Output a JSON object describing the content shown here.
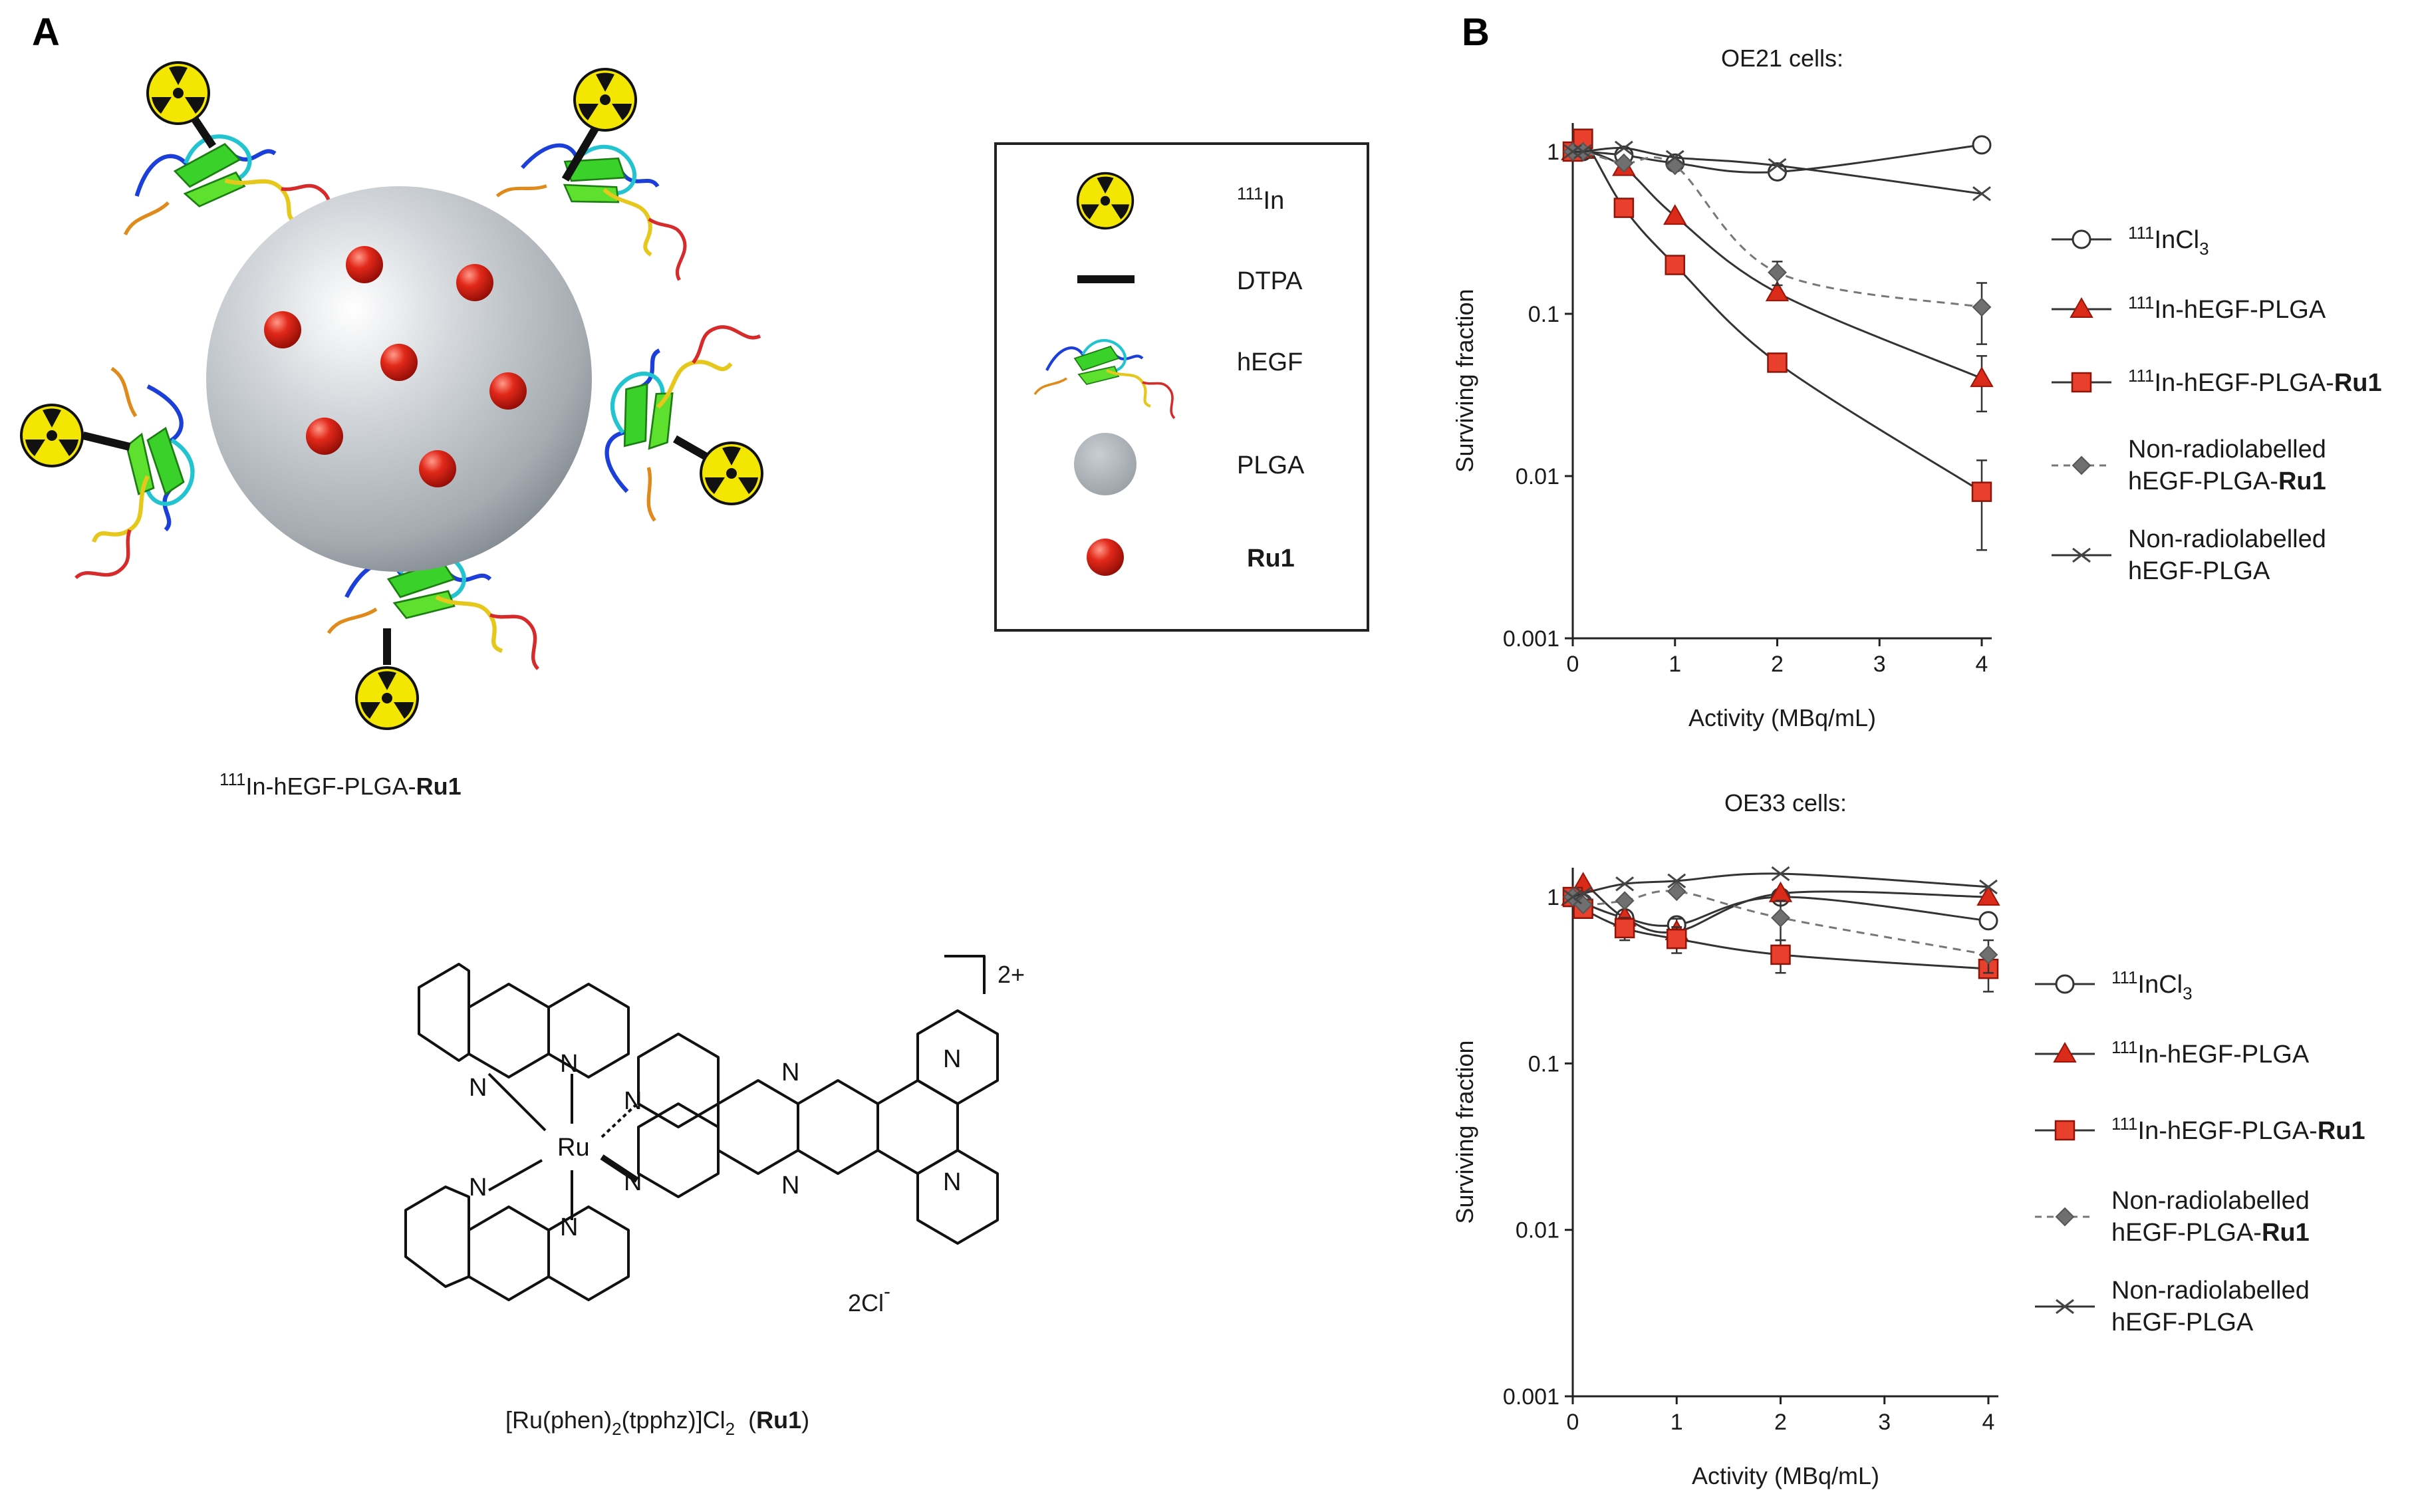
{
  "panel_a": {
    "label": "A",
    "nanoparticle_caption": {
      "pre": "111",
      "main": "In-hEGF-PLGA-",
      "bold": "Ru1"
    },
    "legend": {
      "items": [
        {
          "icon": "radioactive-icon",
          "sup": "111",
          "label": "In"
        },
        {
          "icon": "dtpa-bar-icon",
          "sup": "",
          "label": "DTPA"
        },
        {
          "icon": "hegf-ribbon-icon",
          "sup": "",
          "label": "hEGF"
        },
        {
          "icon": "plga-sphere-icon",
          "sup": "",
          "label": "PLGA"
        },
        {
          "icon": "ru1-sphere-icon",
          "sup": "",
          "label": "Ru1"
        }
      ]
    },
    "structure": {
      "charge": "2+",
      "counterion": {
        "main": "2Cl",
        "sup": "-"
      },
      "ru_label": "Ru",
      "n_label": "N",
      "caption": {
        "pre": "[Ru(phen)",
        "sub1": "2",
        "mid": "(tpphz)]Cl",
        "sub2": "2",
        "post": "  (",
        "bold": "Ru1",
        "end": ")"
      }
    },
    "colors": {
      "radioactive": "#f2e600",
      "sphere": "#b9bec3",
      "ru1": "#d81e12"
    }
  },
  "panel_b": {
    "label": "B",
    "legend_entries": [
      {
        "sup": "111",
        "main": "InCl",
        "sub": "3",
        "bold": ""
      },
      {
        "sup": "111",
        "main": "In-hEGF-PLGA",
        "sub": "",
        "bold": ""
      },
      {
        "sup": "111",
        "main": "In-hEGF-PLGA-",
        "sub": "",
        "bold": "Ru1"
      },
      {
        "sup": "",
        "main": "Non-radiolabelled",
        "line2": "hEGF-PLGA-",
        "bold": "Ru1"
      },
      {
        "sup": "",
        "main": "Non-radiolabelled",
        "line2": "hEGF-PLGA",
        "bold": ""
      }
    ]
  },
  "chart_data": [
    {
      "type": "line",
      "title": "OE21 cells:",
      "xlabel": "Activity (MBq/mL)",
      "ylabel": "Surviving fraction",
      "xlim": [
        0,
        4
      ],
      "ylim": [
        0.001,
        1.5
      ],
      "yscale": "log",
      "xticks": [
        "0",
        "1",
        "2",
        "3",
        "4"
      ],
      "yticks": [
        "0.001",
        "0.01",
        "0.1",
        "1"
      ],
      "series": [
        {
          "key": "incl3",
          "marker": "open-circle",
          "dash": false,
          "x": [
            0,
            0.1,
            0.5,
            1,
            2,
            4
          ],
          "y": [
            1.0,
            1.0,
            0.95,
            0.85,
            0.75,
            1.1
          ],
          "err": [
            0,
            0,
            0,
            0,
            0,
            0
          ]
        },
        {
          "key": "hegf_plga",
          "marker": "triangle",
          "dash": false,
          "x": [
            0,
            0.1,
            0.5,
            1,
            2,
            4
          ],
          "y": [
            1.0,
            1.02,
            0.8,
            0.4,
            0.135,
            0.04
          ],
          "err": [
            0,
            0,
            0,
            0,
            0,
            0.015
          ]
        },
        {
          "key": "hegf_plga_ru1",
          "marker": "square",
          "dash": false,
          "x": [
            0,
            0.1,
            0.5,
            1,
            2,
            4
          ],
          "y": [
            1.0,
            1.2,
            0.45,
            0.2,
            0.05,
            0.008
          ],
          "err": [
            0,
            0,
            0,
            0,
            0,
            0.0045
          ]
        },
        {
          "key": "nonrad_ru1",
          "marker": "diamond",
          "dash": true,
          "x": [
            0,
            0.1,
            0.5,
            1,
            2,
            4
          ],
          "y": [
            1.0,
            1.0,
            0.85,
            0.82,
            0.18,
            0.11
          ],
          "err": [
            0,
            0,
            0,
            0,
            0.03,
            0.045
          ]
        },
        {
          "key": "nonrad",
          "marker": "x",
          "dash": false,
          "x": [
            0,
            0.1,
            0.5,
            1,
            2,
            4
          ],
          "y": [
            1.0,
            1.0,
            1.05,
            0.92,
            0.82,
            0.55
          ],
          "err": [
            0,
            0,
            0,
            0,
            0,
            0
          ]
        }
      ]
    },
    {
      "type": "line",
      "title": "OE33 cells:",
      "xlabel": "Activity (MBq/mL)",
      "ylabel": "Surviving fraction",
      "xlim": [
        0,
        4
      ],
      "ylim": [
        0.001,
        1.5
      ],
      "yscale": "log",
      "xticks": [
        "0",
        "1",
        "2",
        "3",
        "4"
      ],
      "yticks": [
        "0.001",
        "0.01",
        "0.1",
        "1"
      ],
      "series": [
        {
          "key": "incl3",
          "marker": "open-circle",
          "dash": false,
          "x": [
            0,
            0.1,
            0.5,
            1,
            2,
            4
          ],
          "y": [
            1.0,
            0.92,
            0.75,
            0.68,
            1.0,
            0.72
          ],
          "err": [
            0,
            0,
            0,
            0,
            0,
            0
          ]
        },
        {
          "key": "hegf_plga",
          "marker": "triangle",
          "dash": false,
          "x": [
            0,
            0.1,
            0.5,
            1,
            2,
            4
          ],
          "y": [
            1.0,
            1.2,
            0.75,
            0.62,
            1.05,
            1.0
          ],
          "err": [
            0,
            0,
            0,
            0.12,
            0,
            0
          ]
        },
        {
          "key": "hegf_plga_ru1",
          "marker": "square",
          "dash": false,
          "x": [
            0,
            0.1,
            0.5,
            1,
            2,
            4
          ],
          "y": [
            1.0,
            0.85,
            0.65,
            0.56,
            0.45,
            0.37
          ],
          "err": [
            0,
            0,
            0.1,
            0.1,
            0.1,
            0.1
          ]
        },
        {
          "key": "nonrad_ru1",
          "marker": "diamond",
          "dash": true,
          "x": [
            0,
            0.1,
            0.5,
            1,
            2,
            4
          ],
          "y": [
            1.0,
            0.9,
            0.95,
            1.08,
            0.75,
            0.45
          ],
          "err": [
            0,
            0,
            0,
            0,
            0.2,
            0.1
          ]
        },
        {
          "key": "nonrad",
          "marker": "x",
          "dash": false,
          "x": [
            0,
            0.1,
            0.5,
            1,
            2,
            4
          ],
          "y": [
            1.0,
            1.05,
            1.2,
            1.25,
            1.38,
            1.15
          ],
          "err": [
            0,
            0,
            0,
            0,
            0,
            0
          ]
        }
      ]
    }
  ]
}
